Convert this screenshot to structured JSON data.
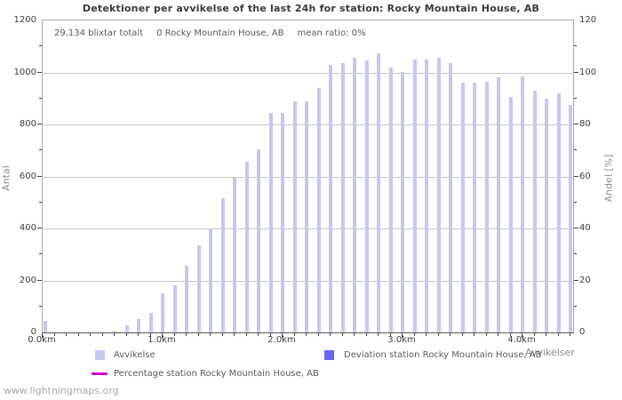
{
  "title": "Detektioner per avvikelse of the last 24h for station: Rocky Mountain House, AB",
  "summary": {
    "total": "29,134 blixtar totalt",
    "station": "0 Rocky Mountain House, AB",
    "mean_ratio": "mean ratio: 0%"
  },
  "axes": {
    "left_label": "Antal",
    "right_label": "Andel [%]",
    "x_label": "Avvikelser",
    "left_ticks": [
      0,
      200,
      400,
      600,
      800,
      1000,
      1200
    ],
    "right_ticks": [
      0,
      20,
      40,
      60,
      80,
      100,
      120
    ],
    "x_tick_labels": [
      "0.0km",
      "1.0km",
      "2.0km",
      "3.0km",
      "4.0km"
    ]
  },
  "legend": [
    {
      "label": "Avvikelse",
      "color": "#c7c7f2",
      "type": "square"
    },
    {
      "label": "Deviation station Rocky Mountain House, AB",
      "color": "#6767ee",
      "type": "square"
    },
    {
      "label": "Percentage station Rocky Mountain House, AB",
      "color": "#cc00cc",
      "type": "line"
    }
  ],
  "watermark": "www.lightningmaps.org",
  "colors": {
    "bar": "#c7c7f2",
    "deviation": "#6767ee",
    "percentage": "#cc00cc",
    "grid": "#c9c9c9"
  },
  "chart_data": {
    "type": "bar",
    "title": "Detektioner per avvikelse of the last 24h for station: Rocky Mountain House, AB",
    "xlabel": "Avvikelser",
    "ylabel_left": "Antal",
    "ylabel_right": "Andel [%]",
    "x_unit": "km",
    "ylim_left": [
      0,
      1200
    ],
    "ylim_right": [
      0,
      120
    ],
    "grid": true,
    "legend_position": "bottom",
    "x": [
      0.0,
      0.1,
      0.2,
      0.3,
      0.4,
      0.5,
      0.6,
      0.7,
      0.8,
      0.9,
      1.0,
      1.1,
      1.2,
      1.3,
      1.4,
      1.5,
      1.6,
      1.7,
      1.8,
      1.9,
      2.0,
      2.1,
      2.2,
      2.3,
      2.4,
      2.5,
      2.6,
      2.7,
      2.8,
      2.9,
      3.0,
      3.1,
      3.2,
      3.3,
      3.4,
      3.5,
      3.6,
      3.7,
      3.8,
      3.9,
      4.0,
      4.1,
      4.2,
      4.3,
      4.4
    ],
    "series": [
      {
        "name": "Avvikelse",
        "axis": "left",
        "values": [
          45,
          0,
          0,
          0,
          0,
          0,
          8,
          27,
          50,
          75,
          150,
          180,
          255,
          335,
          400,
          515,
          595,
          655,
          705,
          845,
          845,
          890,
          890,
          940,
          1030,
          1035,
          1055,
          1045,
          1075,
          1020,
          1000,
          1050,
          1050,
          1055,
          1035,
          960,
          960,
          965,
          980,
          905,
          985,
          930,
          900,
          920,
          875
        ]
      },
      {
        "name": "Deviation station Rocky Mountain House, AB",
        "axis": "left",
        "values": [
          0,
          0,
          0,
          0,
          0,
          0,
          0,
          0,
          0,
          0,
          0,
          0,
          0,
          0,
          0,
          0,
          0,
          0,
          0,
          0,
          0,
          0,
          0,
          0,
          0,
          0,
          0,
          0,
          0,
          0,
          0,
          0,
          0,
          0,
          0,
          0,
          0,
          0,
          0,
          0,
          0,
          0,
          0,
          0,
          0
        ]
      },
      {
        "name": "Percentage station Rocky Mountain House, AB",
        "axis": "right",
        "values": [
          0,
          0,
          0,
          0,
          0,
          0,
          0,
          0,
          0,
          0,
          0,
          0,
          0,
          0,
          0,
          0,
          0,
          0,
          0,
          0,
          0,
          0,
          0,
          0,
          0,
          0,
          0,
          0,
          0,
          0,
          0,
          0,
          0,
          0,
          0,
          0,
          0,
          0,
          0,
          0,
          0,
          0,
          0,
          0,
          0
        ]
      }
    ]
  }
}
